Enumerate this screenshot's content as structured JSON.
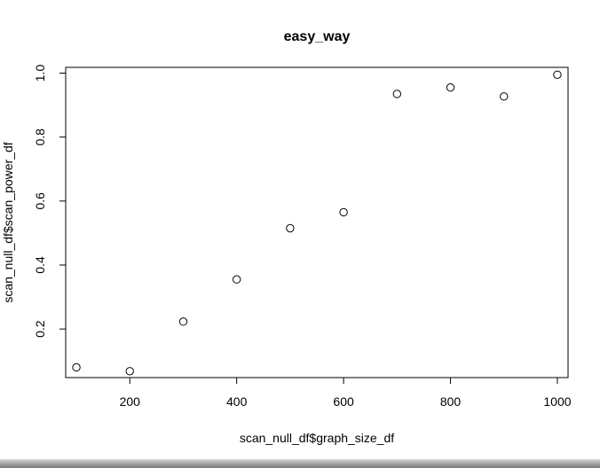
{
  "chart_data": {
    "type": "scatter",
    "title": "easy_way",
    "xlabel": "scan_null_df$graph_size_df",
    "ylabel": "scan_null_df$scan_power_df",
    "xlim": [
      80,
      1020
    ],
    "ylim": [
      0.048,
      1.018
    ],
    "xticks": [
      200,
      400,
      600,
      800,
      1000
    ],
    "yticks": [
      0.2,
      0.4,
      0.6,
      0.8,
      1.0
    ],
    "xtick_labels": [
      "200",
      "400",
      "600",
      "800",
      "1000"
    ],
    "ytick_labels": [
      "0.2",
      "0.4",
      "0.6",
      "0.8",
      "1.0"
    ],
    "grid": false,
    "marker": "open-circle",
    "series": [
      {
        "x": [
          100,
          200,
          300,
          400,
          500,
          600,
          700,
          800,
          900,
          1000
        ],
        "y": [
          0.08,
          0.068,
          0.223,
          0.355,
          0.515,
          0.565,
          0.935,
          0.955,
          0.927,
          0.995
        ]
      }
    ]
  }
}
